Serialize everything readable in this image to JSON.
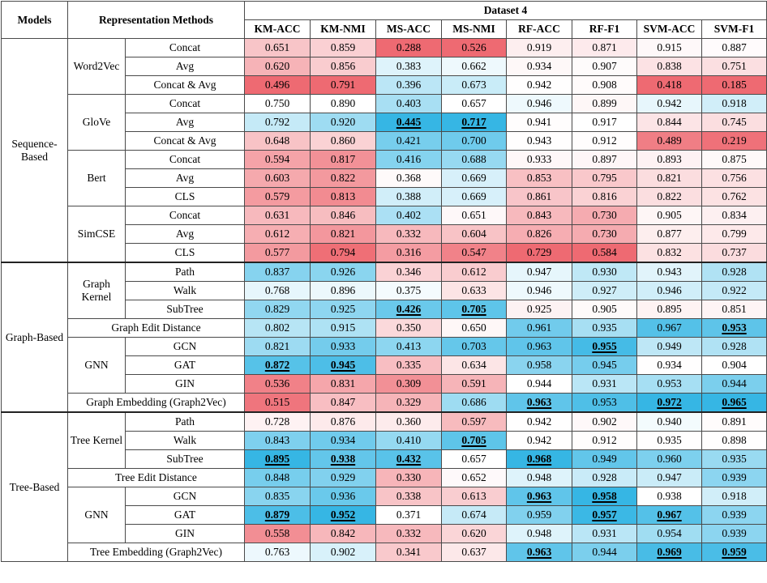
{
  "header": {
    "models": "Models",
    "methods": "Representation Methods",
    "dataset": "Dataset 4",
    "metrics": [
      "KM-ACC",
      "KM-NMI",
      "MS-ACC",
      "MS-NMI",
      "RF-ACC",
      "RF-F1",
      "SVM-ACC",
      "SVM-F1"
    ]
  },
  "colors": {
    "scale_low": "#ee6a72",
    "scale_mid": "#ffffff",
    "scale_high": "#36b6e4",
    "border": "#4a4a4a"
  },
  "groups": [
    {
      "model": "Sequence-Based",
      "subgroups": [
        {
          "name": "Word2Vec",
          "rows": [
            {
              "label": "Concat",
              "values": [
                "0.651",
                "0.859",
                "0.288",
                "0.526",
                "0.919",
                "0.871",
                "0.915",
                "0.887"
              ],
              "best": []
            },
            {
              "label": "Avg",
              "values": [
                "0.620",
                "0.856",
                "0.383",
                "0.662",
                "0.934",
                "0.907",
                "0.838",
                "0.751"
              ],
              "best": []
            },
            {
              "label": "Concat & Avg",
              "values": [
                "0.496",
                "0.791",
                "0.396",
                "0.673",
                "0.942",
                "0.908",
                "0.418",
                "0.185"
              ],
              "best": []
            }
          ]
        },
        {
          "name": "GloVe",
          "rows": [
            {
              "label": "Concat",
              "values": [
                "0.750",
                "0.890",
                "0.403",
                "0.657",
                "0.946",
                "0.899",
                "0.942",
                "0.918"
              ],
              "best": []
            },
            {
              "label": "Avg",
              "values": [
                "0.792",
                "0.920",
                "0.445",
                "0.717",
                "0.941",
                "0.917",
                "0.844",
                "0.745"
              ],
              "best": [
                2,
                3
              ]
            },
            {
              "label": "Concat & Avg",
              "values": [
                "0.648",
                "0.860",
                "0.421",
                "0.700",
                "0.943",
                "0.912",
                "0.489",
                "0.219"
              ],
              "best": []
            }
          ]
        },
        {
          "name": "Bert",
          "rows": [
            {
              "label": "Concat",
              "values": [
                "0.594",
                "0.817",
                "0.416",
                "0.688",
                "0.933",
                "0.897",
                "0.893",
                "0.875"
              ],
              "best": []
            },
            {
              "label": "Avg",
              "values": [
                "0.603",
                "0.822",
                "0.368",
                "0.669",
                "0.853",
                "0.795",
                "0.821",
                "0.756"
              ],
              "best": []
            },
            {
              "label": "CLS",
              "values": [
                "0.579",
                "0.813",
                "0.388",
                "0.669",
                "0.861",
                "0.816",
                "0.822",
                "0.762"
              ],
              "best": []
            }
          ]
        },
        {
          "name": "SimCSE",
          "rows": [
            {
              "label": "Concat",
              "values": [
                "0.631",
                "0.846",
                "0.402",
                "0.651",
                "0.843",
                "0.730",
                "0.905",
                "0.834"
              ],
              "best": []
            },
            {
              "label": "Avg",
              "values": [
                "0.612",
                "0.821",
                "0.332",
                "0.604",
                "0.826",
                "0.730",
                "0.877",
                "0.799"
              ],
              "best": []
            },
            {
              "label": "CLS",
              "values": [
                "0.577",
                "0.794",
                "0.316",
                "0.547",
                "0.729",
                "0.584",
                "0.832",
                "0.737"
              ],
              "best": []
            }
          ]
        }
      ]
    },
    {
      "model": "Graph-Based",
      "subgroups": [
        {
          "name": "Graph Kernel",
          "rows": [
            {
              "label": "Path",
              "values": [
                "0.837",
                "0.926",
                "0.346",
                "0.612",
                "0.947",
                "0.930",
                "0.943",
                "0.928"
              ],
              "best": []
            },
            {
              "label": "Walk",
              "values": [
                "0.768",
                "0.896",
                "0.375",
                "0.633",
                "0.946",
                "0.927",
                "0.946",
                "0.922"
              ],
              "best": []
            },
            {
              "label": "SubTree",
              "values": [
                "0.829",
                "0.925",
                "0.426",
                "0.705",
                "0.925",
                "0.905",
                "0.895",
                "0.851"
              ],
              "best": [
                2,
                3
              ]
            }
          ]
        },
        {
          "name": "Graph Edit Distance",
          "full": true,
          "rows": [
            {
              "label": "",
              "values": [
                "0.802",
                "0.915",
                "0.350",
                "0.650",
                "0.961",
                "0.935",
                "0.967",
                "0.953"
              ],
              "best": [
                7
              ]
            }
          ]
        },
        {
          "name": "GNN",
          "rows": [
            {
              "label": "GCN",
              "values": [
                "0.821",
                "0.933",
                "0.413",
                "0.703",
                "0.963",
                "0.955",
                "0.949",
                "0.928"
              ],
              "best": [
                5
              ]
            },
            {
              "label": "GAT",
              "values": [
                "0.872",
                "0.945",
                "0.335",
                "0.634",
                "0.958",
                "0.945",
                "0.934",
                "0.904"
              ],
              "best": [
                0,
                1
              ]
            },
            {
              "label": "GIN",
              "values": [
                "0.536",
                "0.831",
                "0.309",
                "0.591",
                "0.944",
                "0.931",
                "0.953",
                "0.944"
              ],
              "best": []
            }
          ]
        },
        {
          "name": "Graph Embedding (Graph2Vec)",
          "full": true,
          "rows": [
            {
              "label": "",
              "values": [
                "0.515",
                "0.847",
                "0.329",
                "0.686",
                "0.963",
                "0.953",
                "0.972",
                "0.965"
              ],
              "best": [
                4,
                6,
                7
              ]
            }
          ]
        }
      ]
    },
    {
      "model": "Tree-Based",
      "subgroups": [
        {
          "name": "Tree Kernel",
          "rows": [
            {
              "label": "Path",
              "values": [
                "0.728",
                "0.876",
                "0.360",
                "0.597",
                "0.942",
                "0.902",
                "0.940",
                "0.891"
              ],
              "best": []
            },
            {
              "label": "Walk",
              "values": [
                "0.843",
                "0.934",
                "0.410",
                "0.705",
                "0.942",
                "0.912",
                "0.935",
                "0.898"
              ],
              "best": [
                3
              ]
            },
            {
              "label": "SubTree",
              "values": [
                "0.895",
                "0.938",
                "0.432",
                "0.657",
                "0.968",
                "0.949",
                "0.960",
                "0.935"
              ],
              "best": [
                0,
                1,
                2,
                4
              ]
            }
          ]
        },
        {
          "name": "Tree Edit Distance",
          "full": true,
          "rows": [
            {
              "label": "",
              "values": [
                "0.848",
                "0.929",
                "0.330",
                "0.652",
                "0.948",
                "0.928",
                "0.947",
                "0.939"
              ],
              "best": []
            }
          ]
        },
        {
          "name": "GNN",
          "rows": [
            {
              "label": "GCN",
              "values": [
                "0.835",
                "0.936",
                "0.338",
                "0.613",
                "0.963",
                "0.958",
                "0.938",
                "0.918"
              ],
              "best": [
                4,
                5
              ]
            },
            {
              "label": "GAT",
              "values": [
                "0.879",
                "0.952",
                "0.371",
                "0.674",
                "0.959",
                "0.957",
                "0.967",
                "0.939"
              ],
              "best": [
                0,
                1,
                5,
                6
              ]
            },
            {
              "label": "GIN",
              "values": [
                "0.558",
                "0.842",
                "0.332",
                "0.620",
                "0.948",
                "0.931",
                "0.954",
                "0.939"
              ],
              "best": []
            }
          ]
        },
        {
          "name": "Tree Embedding (Graph2Vec)",
          "full": true,
          "rows": [
            {
              "label": "",
              "values": [
                "0.763",
                "0.902",
                "0.341",
                "0.637",
                "0.963",
                "0.944",
                "0.969",
                "0.959"
              ],
              "best": [
                4,
                6,
                7
              ]
            }
          ]
        }
      ]
    }
  ]
}
